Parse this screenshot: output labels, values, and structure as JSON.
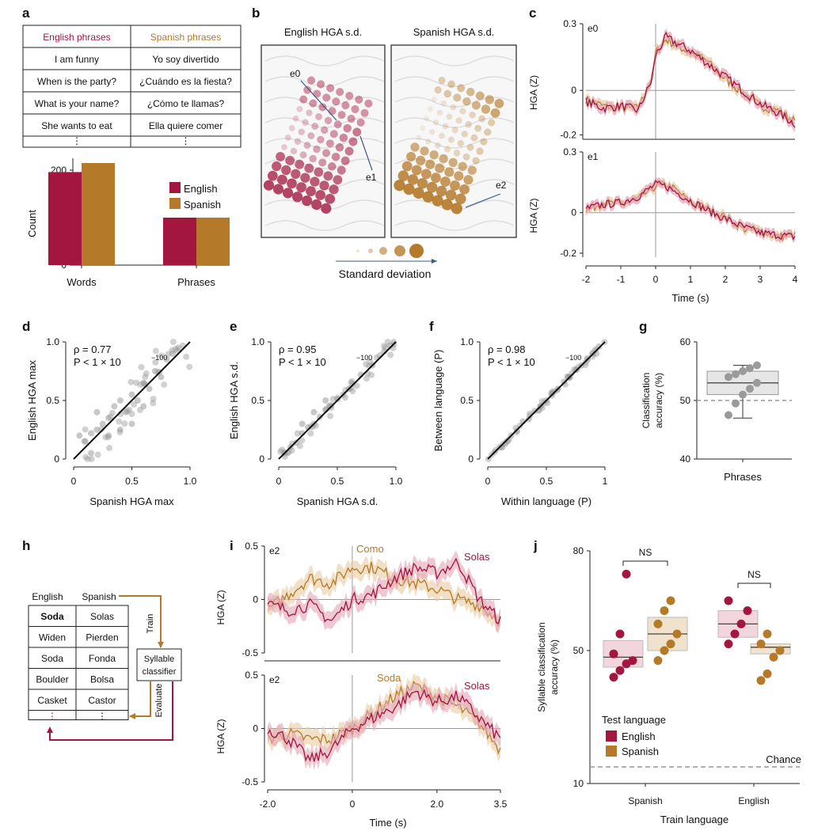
{
  "colors": {
    "english": "#a3163f",
    "spanish": "#b5792a",
    "english_light": "#e2a3b5",
    "spanish_light": "#e8c9a0",
    "grey": "#999999",
    "dark": "#222222"
  },
  "panel_letters": [
    "a",
    "b",
    "c",
    "d",
    "e",
    "f",
    "g",
    "h",
    "i",
    "j"
  ],
  "panel_a": {
    "table": {
      "headers": [
        "English phrases",
        "Spanish phrases"
      ],
      "rows": [
        [
          "I am funny",
          "Yo soy divertido"
        ],
        [
          "When is the party?",
          "¿Cuándo es la fiesta?"
        ],
        [
          "What is your name?",
          "¿Cómo te llamas?"
        ],
        [
          "She wants to eat",
          "Ella quiere comer"
        ]
      ],
      "ellipsis": "⋮"
    }
  },
  "panel_b": {
    "titles": [
      "English HGA s.d.",
      "Spanish HGA s.d."
    ],
    "electrode_labels": [
      "e0",
      "e1",
      "e2"
    ],
    "legend_label": "Standard deviation"
  },
  "panel_c": {
    "xlabel": "Time (s)",
    "ylabel": "HGA (Z)",
    "xticks": [
      "-2",
      "-1",
      "0",
      "1",
      "2",
      "3",
      "4"
    ],
    "top": {
      "label": "e0",
      "yticks": [
        "0.3",
        "0",
        "-0.2"
      ]
    },
    "bottom": {
      "label": "e1",
      "yticks": [
        "0.3",
        "0",
        "-0.2"
      ]
    }
  },
  "panel_d": {
    "annot_rho": "ρ = 0.77",
    "annot_p": "P < 1 × 10",
    "annot_exp": "−100",
    "xlabel": "Spanish HGA max",
    "ylabel": "English HGA max",
    "xticks": [
      "0",
      "0.5",
      "1.0"
    ],
    "yticks": [
      "0",
      "0.5",
      "1.0"
    ]
  },
  "panel_e": {
    "annot_rho": "ρ = 0.95",
    "annot_p": "P < 1 × 10",
    "annot_exp": "−100",
    "xlabel": "Spanish HGA s.d.",
    "ylabel": "English HGA s.d.",
    "xticks": [
      "0",
      "0.5",
      "1.0"
    ],
    "yticks": [
      "0",
      "0.5",
      "1.0"
    ]
  },
  "panel_f": {
    "annot_rho": "ρ = 0.98",
    "annot_p": "P < 1 × 10",
    "annot_exp": "−100",
    "xlabel": "Within language (P)",
    "ylabel": "Between language (P)",
    "xticks": [
      "0",
      "0.5",
      "1"
    ],
    "yticks": [
      "0",
      "0.5",
      "1.0"
    ]
  },
  "panel_g": {
    "ylabel_line1": "Classification",
    "ylabel_line2": "accuracy (%)",
    "yticks": [
      "60",
      "50",
      "40"
    ],
    "xlabel": "Phrases"
  },
  "panel_h": {
    "headers": [
      "English",
      "Spanish"
    ],
    "rows": [
      [
        "Soda",
        "Solas"
      ],
      [
        "Widen",
        "Pierden"
      ],
      [
        "Soda",
        "Fonda"
      ],
      [
        "Boulder",
        "Bolsa"
      ],
      [
        "Casket",
        "Castor"
      ]
    ],
    "ellipsis": "⋮",
    "train": "Train",
    "evaluate": "Evaluate",
    "classifier_line1": "Syllable",
    "classifier_line2": "classifier"
  },
  "panel_i": {
    "ylabel": "HGA (Z)",
    "xlabel": "Time (s)",
    "xticks": [
      "-2.0",
      "0",
      "2.0",
      "3.5"
    ],
    "yticks": [
      "0.5",
      "0",
      "-0.5"
    ],
    "top": {
      "label": "e2",
      "spanish_word": "Como",
      "english_word": "Solas"
    },
    "bottom": {
      "label": "e2",
      "spanish_word": "Soda",
      "english_word": "Solas"
    }
  },
  "panel_j": {
    "ylabel_line1": "Syllable classification",
    "ylabel_line2": "accuracy (%)",
    "yticks": [
      "80",
      "50",
      "10"
    ],
    "xticks": [
      "Spanish",
      "English"
    ],
    "xlabel": "Train language",
    "ns": "NS",
    "chance": "Chance",
    "legend_title": "Test language",
    "legend_items": [
      "English",
      "Spanish"
    ]
  },
  "chart_data": [
    {
      "type": "bar",
      "panel": "a",
      "title": "",
      "ylabel": "Count",
      "categories": [
        "Words",
        "Phrases"
      ],
      "series": [
        {
          "name": "English",
          "values": [
            196,
            100
          ]
        },
        {
          "name": "Spanish",
          "values": [
            215,
            100
          ]
        }
      ],
      "yticks": [
        0,
        100,
        200
      ],
      "ylim": [
        0,
        225
      ],
      "legend": "right"
    },
    {
      "type": "line",
      "panel": "c-e0",
      "xlabel": "Time (s)",
      "ylabel": "HGA (Z)",
      "xlim": [
        -2,
        4
      ],
      "ylim": [
        -0.22,
        0.3
      ],
      "x": [
        -2,
        -1.5,
        -1,
        -0.5,
        -0.1,
        0,
        0.3,
        0.5,
        1,
        1.5,
        2,
        2.5,
        3,
        3.5,
        4
      ],
      "series": [
        {
          "name": "English",
          "values": [
            -0.05,
            -0.08,
            -0.07,
            -0.09,
            0.05,
            0.16,
            0.24,
            0.22,
            0.18,
            0.12,
            0.06,
            0.0,
            -0.06,
            -0.1,
            -0.15
          ]
        },
        {
          "name": "Spanish",
          "values": [
            -0.04,
            -0.07,
            -0.08,
            -0.08,
            0.06,
            0.17,
            0.23,
            0.21,
            0.17,
            0.13,
            0.05,
            -0.01,
            -0.07,
            -0.09,
            -0.14
          ]
        }
      ]
    },
    {
      "type": "line",
      "panel": "c-e1",
      "xlabel": "Time (s)",
      "ylabel": "HGA (Z)",
      "xlim": [
        -2,
        4
      ],
      "ylim": [
        -0.22,
        0.3
      ],
      "x": [
        -2,
        -1.5,
        -1,
        -0.5,
        0,
        0.3,
        0.6,
        1,
        1.5,
        2,
        2.5,
        3,
        3.5,
        4
      ],
      "series": [
        {
          "name": "English",
          "values": [
            0.02,
            0.04,
            0.05,
            0.08,
            0.14,
            0.13,
            0.1,
            0.06,
            0.01,
            -0.03,
            -0.07,
            -0.1,
            -0.11,
            -0.12
          ]
        },
        {
          "name": "Spanish",
          "values": [
            0.01,
            0.05,
            0.04,
            0.07,
            0.13,
            0.14,
            0.11,
            0.05,
            0.02,
            -0.02,
            -0.08,
            -0.09,
            -0.12,
            -0.11
          ]
        }
      ]
    },
    {
      "type": "scatter",
      "panel": "d",
      "xlabel": "Spanish HGA max",
      "ylabel": "English HGA max",
      "xlim": [
        0,
        1
      ],
      "ylim": [
        0,
        1
      ],
      "points": [
        [
          0.05,
          0.2
        ],
        [
          0.1,
          0.15
        ],
        [
          0.15,
          0.22
        ],
        [
          0.2,
          0.25
        ],
        [
          0.25,
          0.3
        ],
        [
          0.3,
          0.35
        ],
        [
          0.35,
          0.45
        ],
        [
          0.4,
          0.5
        ],
        [
          0.45,
          0.4
        ],
        [
          0.5,
          0.55
        ],
        [
          0.55,
          0.5
        ],
        [
          0.6,
          0.65
        ],
        [
          0.65,
          0.6
        ],
        [
          0.7,
          0.75
        ],
        [
          0.75,
          0.7
        ],
        [
          0.8,
          0.85
        ],
        [
          0.85,
          0.9
        ],
        [
          0.9,
          0.95
        ],
        [
          0.2,
          0.4
        ],
        [
          0.3,
          0.2
        ],
        [
          0.5,
          0.3
        ],
        [
          0.6,
          0.45
        ],
        [
          0.15,
          0.05
        ],
        [
          0.4,
          0.25
        ]
      ],
      "fit": [
        [
          0,
          0
        ],
        [
          1,
          1
        ]
      ]
    },
    {
      "type": "scatter",
      "panel": "e",
      "xlabel": "Spanish HGA s.d.",
      "ylabel": "English HGA s.d.",
      "xlim": [
        0,
        1
      ],
      "ylim": [
        0,
        1
      ],
      "points": [
        [
          0.05,
          0.05
        ],
        [
          0.1,
          0.1
        ],
        [
          0.15,
          0.14
        ],
        [
          0.2,
          0.22
        ],
        [
          0.25,
          0.27
        ],
        [
          0.3,
          0.3
        ],
        [
          0.35,
          0.36
        ],
        [
          0.4,
          0.42
        ],
        [
          0.45,
          0.46
        ],
        [
          0.5,
          0.52
        ],
        [
          0.55,
          0.55
        ],
        [
          0.6,
          0.6
        ],
        [
          0.7,
          0.72
        ],
        [
          0.8,
          0.8
        ],
        [
          0.9,
          0.92
        ],
        [
          0.95,
          0.97
        ],
        [
          0.2,
          0.3
        ],
        [
          0.3,
          0.4
        ],
        [
          0.4,
          0.5
        ]
      ],
      "fit": [
        [
          0,
          0
        ],
        [
          1,
          1
        ]
      ]
    },
    {
      "type": "scatter",
      "panel": "f",
      "xlabel": "Within language (P)",
      "ylabel": "Between language (P)",
      "xlim": [
        0,
        1
      ],
      "ylim": [
        0,
        1
      ],
      "points": [
        [
          0.1,
          0.1
        ],
        [
          0.15,
          0.13
        ],
        [
          0.2,
          0.2
        ],
        [
          0.25,
          0.24
        ],
        [
          0.3,
          0.32
        ],
        [
          0.35,
          0.34
        ],
        [
          0.4,
          0.41
        ],
        [
          0.45,
          0.45
        ],
        [
          0.5,
          0.5
        ],
        [
          0.55,
          0.56
        ],
        [
          0.6,
          0.6
        ],
        [
          0.65,
          0.66
        ],
        [
          0.7,
          0.7
        ],
        [
          0.75,
          0.76
        ],
        [
          0.8,
          0.8
        ],
        [
          0.85,
          0.86
        ],
        [
          0.9,
          0.9
        ],
        [
          0.95,
          0.96
        ]
      ],
      "fit": [
        [
          0,
          0
        ],
        [
          1,
          1
        ]
      ]
    },
    {
      "type": "box",
      "panel": "g",
      "xlabel": "Phrases",
      "ylabel": "Classification accuracy (%)",
      "ylim": [
        40,
        60
      ],
      "chance": 50,
      "box": {
        "min": 47,
        "q1": 51,
        "median": 53,
        "q3": 55,
        "max": 56
      },
      "points": [
        47.5,
        49.5,
        51,
        52,
        53,
        54,
        54.5,
        55,
        55.5,
        56
      ]
    },
    {
      "type": "line",
      "panel": "i-top",
      "xlabel": "Time (s)",
      "ylabel": "HGA (Z)",
      "xlim": [
        -2,
        3.5
      ],
      "ylim": [
        -0.5,
        0.5
      ],
      "x": [
        -2,
        -1.5,
        -1,
        -0.5,
        0,
        0.5,
        1,
        1.5,
        2,
        2.5,
        3,
        3.5
      ],
      "series": [
        {
          "name": "Solas",
          "values": [
            -0.05,
            -0.1,
            -0.05,
            -0.2,
            0.0,
            0.05,
            0.2,
            0.3,
            0.25,
            0.35,
            0.0,
            -0.2
          ]
        },
        {
          "name": "Como",
          "values": [
            -0.1,
            0.05,
            0.2,
            0.15,
            0.3,
            0.3,
            0.2,
            0.15,
            0.1,
            0.0,
            -0.05,
            -0.2
          ]
        }
      ]
    },
    {
      "type": "line",
      "panel": "i-bottom",
      "xlabel": "Time (s)",
      "ylabel": "HGA (Z)",
      "xlim": [
        -2,
        3.5
      ],
      "ylim": [
        -0.5,
        0.5
      ],
      "x": [
        -2,
        -1.5,
        -1,
        -0.5,
        0,
        0.5,
        1,
        1.5,
        2,
        2.5,
        3,
        3.5
      ],
      "series": [
        {
          "name": "Solas",
          "values": [
            0.0,
            -0.1,
            -0.3,
            -0.2,
            0.0,
            0.1,
            0.2,
            0.35,
            0.25,
            0.3,
            0.1,
            -0.1
          ]
        },
        {
          "name": "Soda",
          "values": [
            -0.1,
            -0.05,
            -0.1,
            -0.1,
            0.0,
            0.15,
            0.3,
            0.4,
            0.3,
            0.2,
            0.05,
            -0.2
          ]
        }
      ]
    },
    {
      "type": "box",
      "panel": "j",
      "xlabel": "Train language",
      "ylabel": "Syllable classification accuracy (%)",
      "ylim": [
        10,
        80
      ],
      "chance": 15,
      "groups": [
        {
          "train": "Spanish",
          "test": "English",
          "box": {
            "q1": 45,
            "median": 48,
            "q3": 53
          },
          "points": [
            42,
            44,
            46,
            47,
            49,
            55,
            73
          ]
        },
        {
          "train": "Spanish",
          "test": "Spanish",
          "box": {
            "q1": 50,
            "median": 55,
            "q3": 60
          },
          "points": [
            47,
            50,
            52,
            55,
            58,
            62,
            65
          ]
        },
        {
          "train": "English",
          "test": "English",
          "box": {
            "q1": 54,
            "median": 58,
            "q3": 62
          },
          "points": [
            52,
            55,
            58,
            62,
            65
          ]
        },
        {
          "train": "English",
          "test": "Spanish",
          "box": {
            "q1": 49,
            "median": 51,
            "q3": 52
          },
          "points": [
            41,
            43,
            48,
            50,
            52,
            55
          ]
        }
      ]
    }
  ]
}
